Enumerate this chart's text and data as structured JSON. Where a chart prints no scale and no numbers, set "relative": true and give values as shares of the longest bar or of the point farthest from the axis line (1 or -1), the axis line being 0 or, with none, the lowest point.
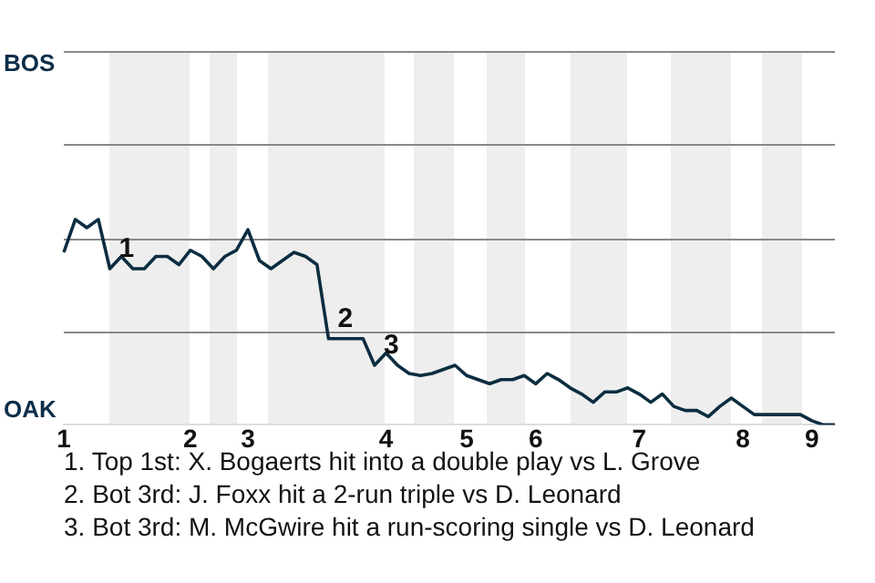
{
  "chart_data": {
    "type": "line",
    "categories": [
      "1",
      null,
      null,
      null,
      null,
      null,
      null,
      null,
      null,
      null,
      null,
      "2",
      null,
      null,
      null,
      null,
      "3",
      null,
      null,
      null,
      null,
      null,
      null,
      null,
      null,
      null,
      null,
      null,
      "4",
      null,
      null,
      null,
      null,
      null,
      null,
      "5",
      null,
      null,
      null,
      null,
      null,
      "6",
      null,
      null,
      null,
      null,
      null,
      null,
      null,
      null,
      "7",
      null,
      null,
      null,
      null,
      null,
      null,
      null,
      null,
      "8",
      null,
      null,
      null,
      null,
      null,
      "9",
      null,
      null
    ],
    "relative": true,
    "series": [
      {
        "color": "#0c2d40",
        "values": [
          0.84,
          1,
          0.96,
          1,
          0.76,
          0.82,
          0.76,
          0.76,
          0.82,
          0.82,
          0.78,
          0.85,
          0.82,
          0.76,
          0.82,
          0.85,
          0.95,
          0.8,
          0.76,
          0.8,
          0.84,
          0.82,
          0.78,
          0.42,
          0.42,
          0.42,
          0.42,
          0.29,
          0.35,
          0.29,
          0.25,
          0.24,
          0.25,
          0.27,
          0.29,
          0.24,
          0.22,
          0.2,
          0.22,
          0.22,
          0.24,
          0.2,
          0.25,
          0.22,
          0.18,
          0.15,
          0.11,
          0.16,
          0.16,
          0.18,
          0.15,
          0.11,
          0.15,
          0.09,
          0.07,
          0.07,
          0.04,
          0.09,
          0.13,
          0.09,
          0.05,
          0.05,
          0.05,
          0.05,
          0.05,
          0.02,
          0,
          0
        ]
      }
    ],
    "marker": "none",
    "ref_lines": [
      {
        "axis": "y",
        "value": 0.45,
        "color": "#888888"
      },
      {
        "axis": "y",
        "value": 0.91,
        "color": "#888888"
      }
    ],
    "annotations": [
      "BOS",
      "OAK",
      {
        "text": "1",
        "y": 0.76
      },
      {
        "text": "2",
        "y": 0.42
      },
      {
        "text": "3",
        "y": 0.29
      },
      "1. Top 1st: X. Bogaerts hit into a double play vs L. Grove",
      "2. Bot 3rd: J. Foxx hit a 2-run triple vs D. Leonard",
      "3. Bot 3rd: M. McGwire hit a run-scoring single vs D. Leonard"
    ]
  }
}
